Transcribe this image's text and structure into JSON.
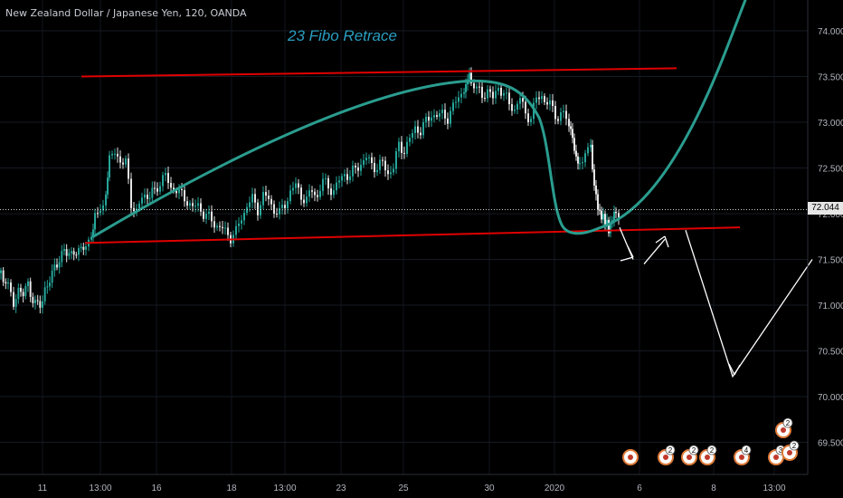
{
  "header": {
    "symbol_title": "New Zealand Dollar / Japanese Yen, 120, OANDA"
  },
  "annotation": {
    "text": "23 Fibo Retrace"
  },
  "price_tag": {
    "value": "72.044"
  },
  "colors": {
    "background": "#000000",
    "candle_up": "#26a69a",
    "candle_down": "#e6e6e6",
    "trendline": "#e00000",
    "curve": "#2a9d8f",
    "projection_arrows": "#ffffff",
    "annotation_text": "#2a9dc0"
  },
  "event_badges": [
    "2",
    "2",
    "2",
    "4",
    "3",
    "2",
    "2"
  ],
  "chart_data": {
    "type": "candlestick",
    "title": "New Zealand Dollar / Japanese Yen, 120, OANDA",
    "ylim": [
      69.2,
      74.35
    ],
    "y_ticks": [
      "74.000",
      "73.500",
      "73.000",
      "72.500",
      "72.000",
      "71.500",
      "71.000",
      "70.500",
      "70.000",
      "69.500"
    ],
    "x_ticks": [
      "11",
      "13:00",
      "16",
      "18",
      "13:00",
      "23",
      "25",
      "30",
      "2020",
      "6",
      "8",
      "13:00"
    ],
    "current_price": 72.044,
    "price_path": [
      [
        0,
        71.35
      ],
      [
        8,
        71.2
      ],
      [
        14,
        71.05
      ],
      [
        22,
        71.15
      ],
      [
        30,
        71.2
      ],
      [
        38,
        71.0
      ],
      [
        46,
        71.05
      ],
      [
        54,
        71.3
      ],
      [
        62,
        71.45
      ],
      [
        70,
        71.6
      ],
      [
        78,
        71.55
      ],
      [
        86,
        71.6
      ],
      [
        94,
        71.65
      ],
      [
        100,
        71.7
      ],
      [
        104,
        72.0
      ],
      [
        110,
        72.05
      ],
      [
        116,
        72.2
      ],
      [
        120,
        72.6
      ],
      [
        126,
        72.65
      ],
      [
        132,
        72.6
      ],
      [
        138,
        72.55
      ],
      [
        144,
        72.1
      ],
      [
        150,
        72.05
      ],
      [
        156,
        72.15
      ],
      [
        162,
        72.2
      ],
      [
        170,
        72.25
      ],
      [
        176,
        72.35
      ],
      [
        182,
        72.4
      ],
      [
        188,
        72.3
      ],
      [
        194,
        72.25
      ],
      [
        200,
        72.2
      ],
      [
        206,
        72.15
      ],
      [
        212,
        72.05
      ],
      [
        218,
        72.1
      ],
      [
        224,
        72.0
      ],
      [
        230,
        71.95
      ],
      [
        236,
        71.9
      ],
      [
        242,
        71.85
      ],
      [
        248,
        71.8
      ],
      [
        254,
        71.75
      ],
      [
        260,
        71.8
      ],
      [
        266,
        71.95
      ],
      [
        272,
        72.1
      ],
      [
        278,
        72.15
      ],
      [
        284,
        72.05
      ],
      [
        290,
        72.2
      ],
      [
        296,
        72.15
      ],
      [
        302,
        72.05
      ],
      [
        308,
        72.0
      ],
      [
        314,
        72.1
      ],
      [
        320,
        72.25
      ],
      [
        326,
        72.3
      ],
      [
        332,
        72.2
      ],
      [
        338,
        72.15
      ],
      [
        344,
        72.25
      ],
      [
        350,
        72.2
      ],
      [
        356,
        72.35
      ],
      [
        362,
        72.3
      ],
      [
        368,
        72.25
      ],
      [
        374,
        72.35
      ],
      [
        380,
        72.45
      ],
      [
        386,
        72.4
      ],
      [
        392,
        72.5
      ],
      [
        398,
        72.55
      ],
      [
        404,
        72.6
      ],
      [
        410,
        72.55
      ],
      [
        416,
        72.5
      ],
      [
        422,
        72.55
      ],
      [
        428,
        72.45
      ],
      [
        434,
        72.5
      ],
      [
        440,
        72.75
      ],
      [
        446,
        72.7
      ],
      [
        452,
        72.8
      ],
      [
        458,
        72.95
      ],
      [
        464,
        72.9
      ],
      [
        470,
        73.0
      ],
      [
        476,
        73.1
      ],
      [
        482,
        73.05
      ],
      [
        488,
        73.1
      ],
      [
        494,
        73.05
      ],
      [
        500,
        73.15
      ],
      [
        506,
        73.3
      ],
      [
        512,
        73.35
      ],
      [
        516,
        73.5
      ],
      [
        520,
        73.45
      ],
      [
        526,
        73.35
      ],
      [
        532,
        73.3
      ],
      [
        538,
        73.35
      ],
      [
        544,
        73.25
      ],
      [
        550,
        73.4
      ],
      [
        556,
        73.3
      ],
      [
        562,
        73.2
      ],
      [
        568,
        73.15
      ],
      [
        574,
        73.25
      ],
      [
        580,
        73.1
      ],
      [
        586,
        73.05
      ],
      [
        592,
        73.25
      ],
      [
        598,
        73.3
      ],
      [
        604,
        73.2
      ],
      [
        610,
        73.15
      ],
      [
        616,
        73.05
      ],
      [
        622,
        73.1
      ],
      [
        628,
        72.95
      ],
      [
        632,
        72.85
      ],
      [
        636,
        72.6
      ],
      [
        640,
        72.5
      ],
      [
        646,
        72.7
      ],
      [
        652,
        72.75
      ],
      [
        656,
        72.3
      ],
      [
        660,
        72.05
      ],
      [
        664,
        72.0
      ],
      [
        668,
        71.9
      ],
      [
        672,
        71.85
      ],
      [
        676,
        71.95
      ],
      [
        680,
        72.0
      ],
      [
        686,
        72.04
      ]
    ],
    "support_line": {
      "from": [
        94,
        71.68
      ],
      "to": [
        818,
        71.85
      ]
    },
    "resistance_line": {
      "from": [
        90,
        73.5
      ],
      "to": [
        748,
        73.59
      ]
    },
    "projection_path": [
      [
        685,
        71.85
      ],
      [
        700,
        71.5
      ],
      [
        712,
        71.45
      ],
      [
        735,
        71.72
      ],
      [
        758,
        71.82
      ],
      [
        810,
        70.22
      ],
      [
        898,
        71.5
      ]
    ]
  }
}
